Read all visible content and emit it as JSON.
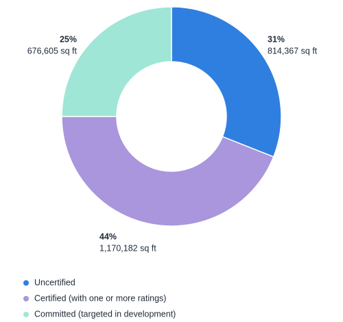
{
  "chart_data": {
    "type": "donut",
    "categories": [
      "Uncertified",
      "Certified (with one or more ratings)",
      "Committed (targeted in development)"
    ],
    "values": [
      31,
      44,
      25
    ],
    "value_labels": [
      "31%",
      "44%",
      "25%"
    ],
    "areas": [
      814367,
      1170182,
      676605
    ],
    "area_labels": [
      "814,367 sq ft",
      "1,170,182 sq ft",
      "676,605 sq ft"
    ],
    "colors": [
      "#2f7fe0",
      "#a996dd",
      "#9fe6d6"
    ],
    "legend": "bottom-left"
  }
}
